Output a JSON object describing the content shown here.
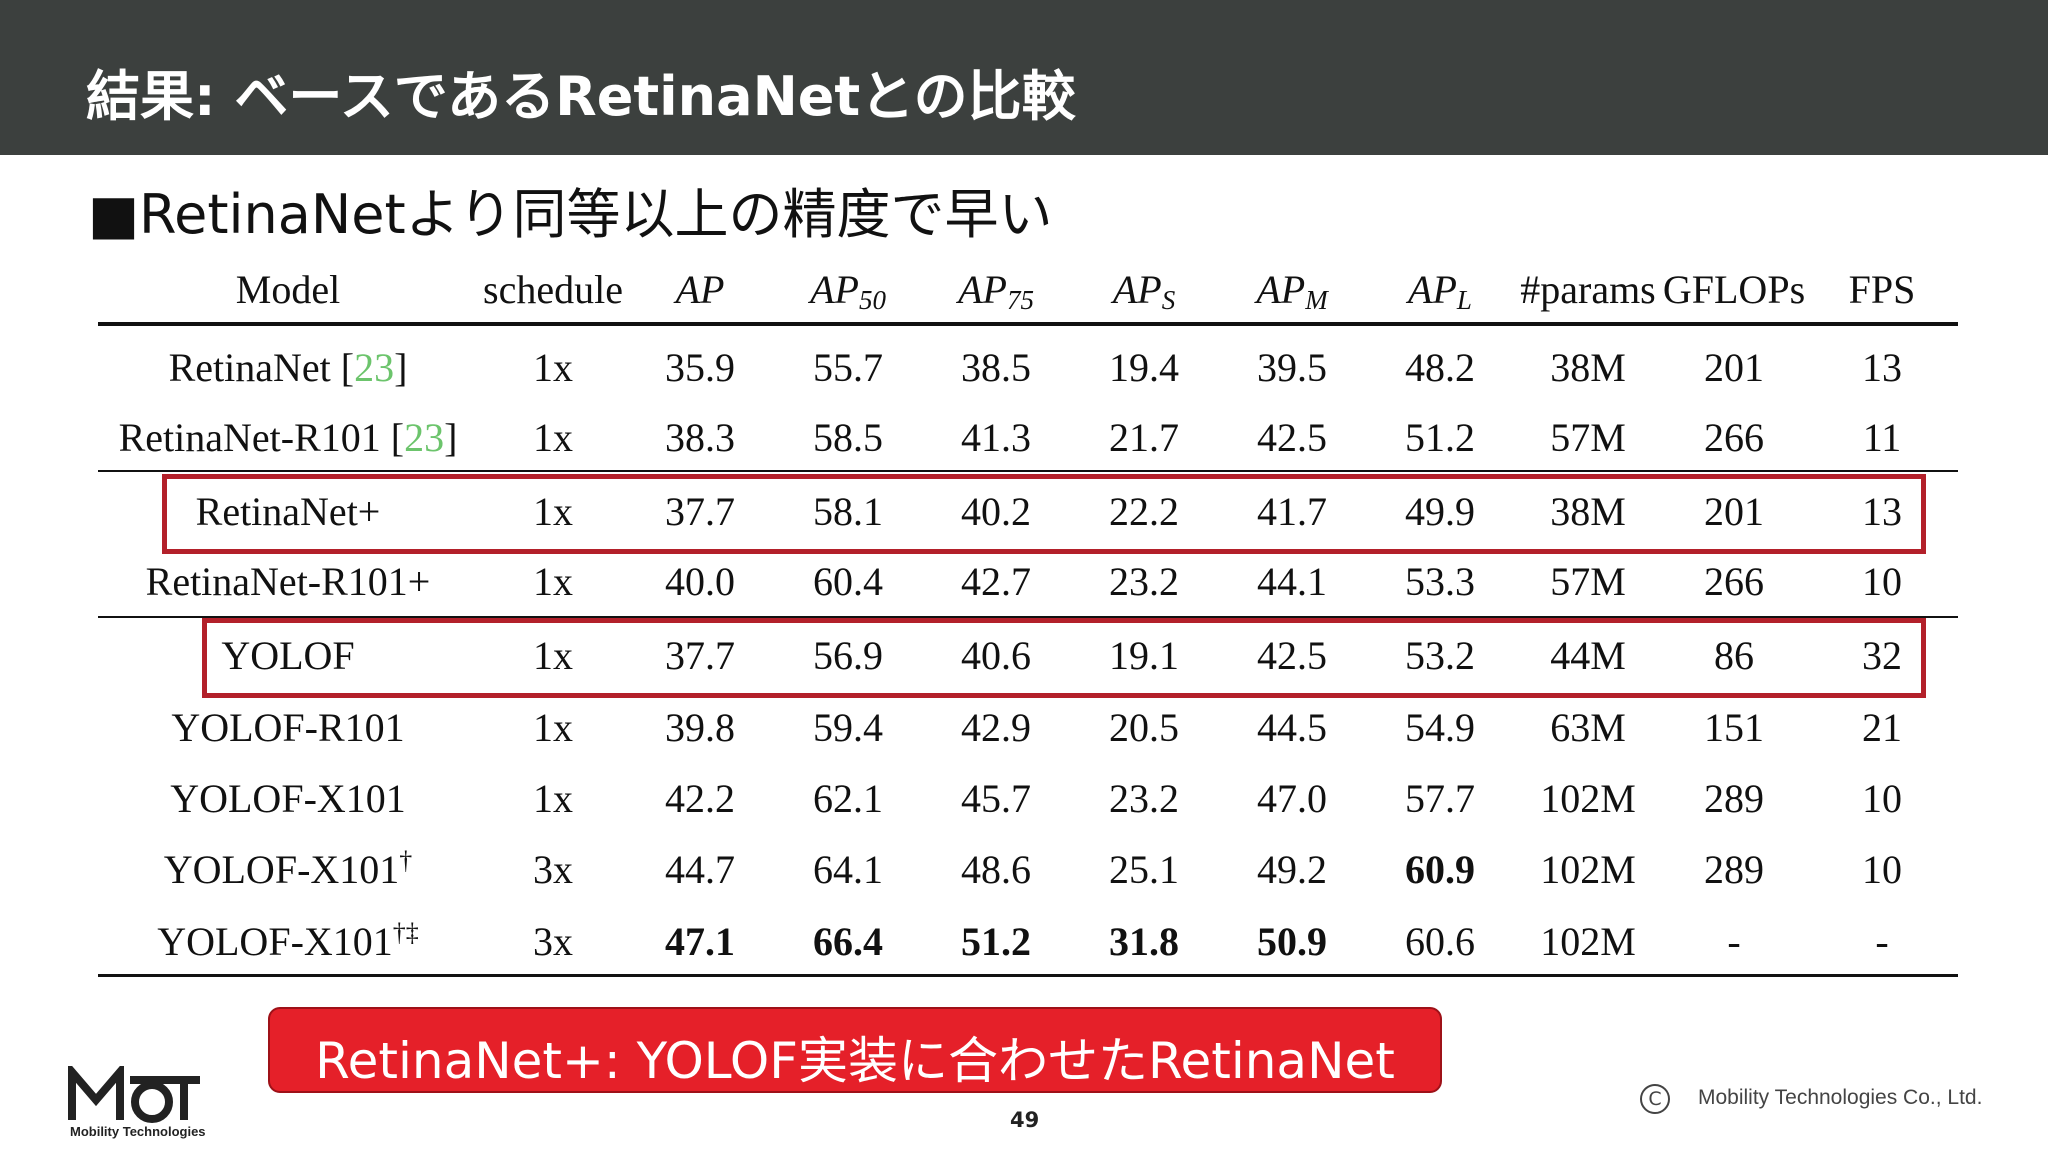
{
  "header": {
    "title": "結果: ベースであるRetinaNetとの比較"
  },
  "subtitle": "■RetinaNetより同等以上の精度で早い",
  "table": {
    "headers": [
      {
        "base": "Model",
        "sub": "",
        "italic": false
      },
      {
        "base": "schedule",
        "sub": "",
        "italic": false
      },
      {
        "base": "AP",
        "sub": "",
        "italic": true
      },
      {
        "base": "AP",
        "sub": "50",
        "italic": true
      },
      {
        "base": "AP",
        "sub": "75",
        "italic": true
      },
      {
        "base": "AP",
        "sub": "S",
        "italic": true
      },
      {
        "base": "AP",
        "sub": "M",
        "italic": true
      },
      {
        "base": "AP",
        "sub": "L",
        "italic": true
      },
      {
        "base": "#params",
        "sub": "",
        "italic": false
      },
      {
        "base": "GFLOPs",
        "sub": "",
        "italic": false
      },
      {
        "base": "FPS",
        "sub": "",
        "italic": false
      }
    ],
    "rows": [
      {
        "model": "RetinaNet",
        "cite": "23",
        "sup": "",
        "highlighted": false,
        "bold": [],
        "values": [
          "1x",
          "35.9",
          "55.7",
          "38.5",
          "19.4",
          "39.5",
          "48.2",
          "38M",
          "201",
          "13"
        ]
      },
      {
        "model": "RetinaNet-R101",
        "cite": "23",
        "sup": "",
        "highlighted": false,
        "bold": [],
        "values": [
          "1x",
          "38.3",
          "58.5",
          "41.3",
          "21.7",
          "42.5",
          "51.2",
          "57M",
          "266",
          "11"
        ]
      },
      {
        "model": "RetinaNet+",
        "cite": "",
        "sup": "",
        "highlighted": true,
        "bold": [],
        "values": [
          "1x",
          "37.7",
          "58.1",
          "40.2",
          "22.2",
          "41.7",
          "49.9",
          "38M",
          "201",
          "13"
        ]
      },
      {
        "model": "RetinaNet-R101+",
        "cite": "",
        "sup": "",
        "highlighted": false,
        "bold": [],
        "values": [
          "1x",
          "40.0",
          "60.4",
          "42.7",
          "23.2",
          "44.1",
          "53.3",
          "57M",
          "266",
          "10"
        ]
      },
      {
        "model": "YOLOF",
        "cite": "",
        "sup": "",
        "highlighted": true,
        "bold": [],
        "values": [
          "1x",
          "37.7",
          "56.9",
          "40.6",
          "19.1",
          "42.5",
          "53.2",
          "44M",
          "86",
          "32"
        ]
      },
      {
        "model": "YOLOF-R101",
        "cite": "",
        "sup": "",
        "highlighted": false,
        "bold": [],
        "values": [
          "1x",
          "39.8",
          "59.4",
          "42.9",
          "20.5",
          "44.5",
          "54.9",
          "63M",
          "151",
          "21"
        ]
      },
      {
        "model": "YOLOF-X101",
        "cite": "",
        "sup": "",
        "highlighted": false,
        "bold": [],
        "values": [
          "1x",
          "42.2",
          "62.1",
          "45.7",
          "23.2",
          "47.0",
          "57.7",
          "102M",
          "289",
          "10"
        ]
      },
      {
        "model": "YOLOF-X101",
        "cite": "",
        "sup": "†",
        "highlighted": false,
        "bold": [
          6
        ],
        "values": [
          "3x",
          "44.7",
          "64.1",
          "48.6",
          "25.1",
          "49.2",
          "60.9",
          "102M",
          "289",
          "10"
        ]
      },
      {
        "model": "YOLOF-X101",
        "cite": "",
        "sup": "†‡",
        "highlighted": false,
        "bold": [
          1,
          2,
          3,
          4,
          5
        ],
        "values": [
          "3x",
          "47.1",
          "66.4",
          "51.2",
          "31.8",
          "50.9",
          "60.6",
          "102M",
          "-",
          "-"
        ]
      }
    ]
  },
  "note": "RetinaNet+: YOLOF実装に合わせたRetinaNet",
  "footer": {
    "page_number": "49",
    "copyright_symbol": "C",
    "copyright_text": "Mobility Technologies Co., Ltd.",
    "logo_caption": "Mobility Technologies"
  },
  "colors": {
    "header_bg": "#3c403e",
    "highlight_border": "#b3202a",
    "note_bg": "#e52029",
    "citation": "#6cc46c"
  }
}
